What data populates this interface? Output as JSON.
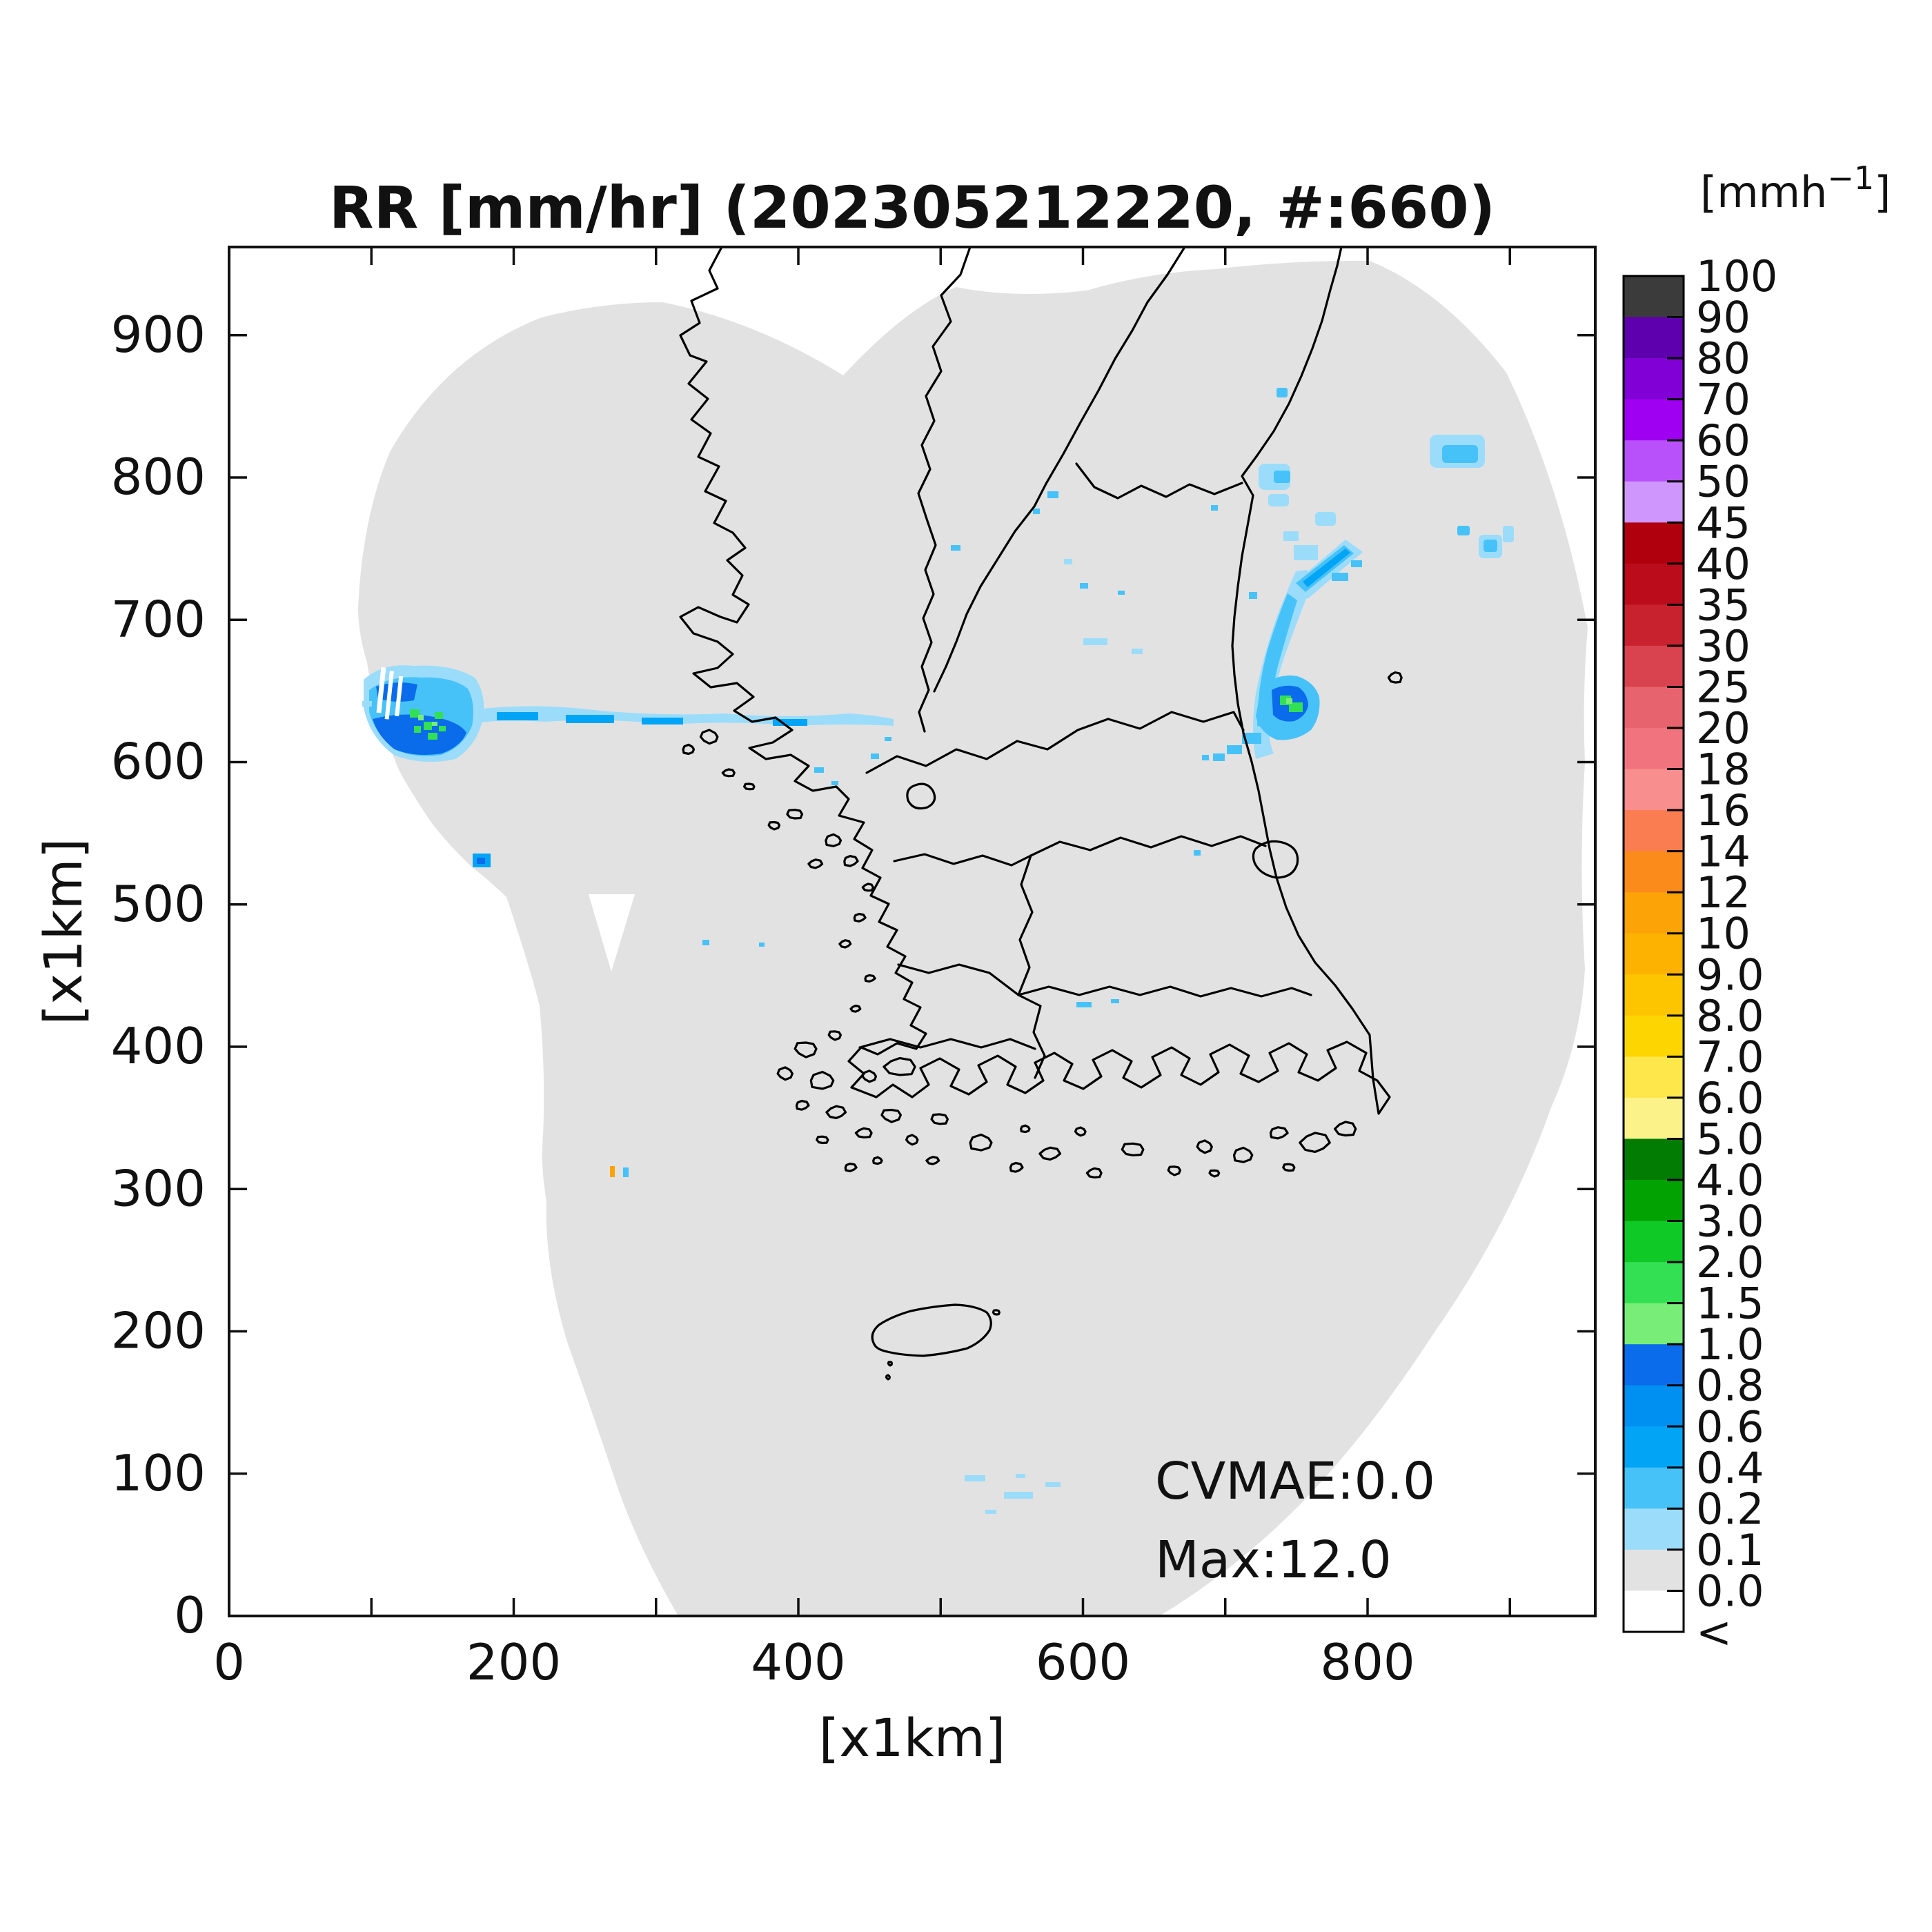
{
  "title": "RR [mm/hr] (202305212220, #:660)",
  "axes": {
    "x": {
      "label": "[x1km]",
      "range_km": [
        0,
        960
      ],
      "labeled_ticks": [
        0,
        200,
        400,
        600,
        800
      ],
      "minor_ticks": [
        0,
        100,
        200,
        300,
        400,
        500,
        600,
        700,
        800,
        900
      ],
      "tick_labels": [
        "0",
        "200",
        "400",
        "600",
        "800"
      ]
    },
    "y": {
      "label": "[x1km]",
      "range_km": [
        0,
        960
      ],
      "labeled_ticks": [
        0,
        100,
        200,
        300,
        400,
        500,
        600,
        700,
        800,
        900
      ],
      "minor_ticks": [
        0,
        100,
        200,
        300,
        400,
        500,
        600,
        700,
        800,
        900
      ],
      "tick_labels": [
        "0",
        "100",
        "200",
        "300",
        "400",
        "500",
        "600",
        "700",
        "800",
        "900"
      ]
    }
  },
  "annotations": {
    "cvmae": "CVMAE:0.0",
    "max": "Max:12.0"
  },
  "colorbar": {
    "unit_prefix": "[mmh",
    "unit_exp": "−1",
    "unit_suffix": "]",
    "labels_top_to_bottom": [
      "100",
      "90",
      "80",
      "70",
      "60",
      "50",
      "45",
      "40",
      "35",
      "30",
      "25",
      "20",
      "18",
      "16",
      "14",
      "12",
      "10",
      "9.0",
      "8.0",
      "7.0",
      "6.0",
      "5.0",
      "4.0",
      "3.0",
      "2.0",
      "1.5",
      "1.0",
      "0.8",
      "0.6",
      "0.4",
      "0.2",
      "0.1",
      "0.0",
      "<"
    ],
    "segment_colors_top_to_bottom": [
      "#3b3b3b",
      "#5e00ae",
      "#8000d6",
      "#9f00f2",
      "#b951fa",
      "#cf97fd",
      "#b0000e",
      "#bb0c1c",
      "#c8222e",
      "#d8434f",
      "#e7636d",
      "#f1737e",
      "#f88e8e",
      "#fa7d52",
      "#fb8b1b",
      "#fca307",
      "#fdb201",
      "#fdc400",
      "#fdd500",
      "#fde74b",
      "#fcf28a",
      "#027c02",
      "#03a203",
      "#0ec926",
      "#33df53",
      "#78ee78",
      "#0a6cea",
      "#0090f2",
      "#02a4f6",
      "#47c2f8",
      "#9bdcfb",
      "#e2e2e2",
      "#ffffff"
    ]
  },
  "map_colors": {
    "coverage_gray": "#e2e2e2",
    "coastline": "#000000",
    "precip_light": "#9bdcfb",
    "precip_light2": "#47c2f8",
    "precip_mid": "#02a4f6",
    "precip_dark": "#0a6cea",
    "precip_green": "#33df53",
    "precip_green_light": "#78ee78",
    "precip_orange": "#fca307"
  },
  "chart_data": {
    "type": "heatmap",
    "title": "RR [mm/hr] (202305212220, #:660)",
    "xlabel": "[x1km]",
    "ylabel": "[x1km]",
    "xlim": [
      0,
      960
    ],
    "ylim": [
      0,
      960
    ],
    "colorbar_unit": "mmh^-1",
    "scale_levels": [
      "<",
      0.0,
      0.1,
      0.2,
      0.4,
      0.6,
      0.8,
      1.0,
      1.5,
      2.0,
      3.0,
      4.0,
      5.0,
      6.0,
      7.0,
      8.0,
      9.0,
      10,
      12,
      14,
      16,
      18,
      20,
      25,
      30,
      35,
      40,
      45,
      50,
      60,
      70,
      80,
      90,
      100
    ],
    "stats": {
      "CVMAE": 0.0,
      "Max": 12.0,
      "sample_count": 660
    },
    "description": "KMA radar composite rain-rate map over the Korean peninsula; gray = radar coverage (0.0-0.1 mm/hr), white = outside coverage",
    "precip_regions_km": [
      {
        "name": "yellow-sea-band-west",
        "center": [
          130,
          625
        ],
        "extent": [
          80,
          60
        ],
        "peak_mmhr": 2.0,
        "note": "comet-shaped band with green core, thin streak extending east to x=465"
      },
      {
        "name": "east-coast-crescent",
        "center": [
          740,
          645
        ],
        "extent": [
          45,
          130
        ],
        "peak_mmhr": 2.0,
        "note": "crescent band with green core near coast"
      },
      {
        "name": "east-sea-scattered",
        "center": [
          855,
          800
        ],
        "extent": [
          220,
          140
        ],
        "peak_mmhr": 0.6,
        "note": "scattered light blue patches"
      },
      {
        "name": "isolated-speck",
        "center": [
          265,
          315
        ],
        "extent": [
          5,
          8
        ],
        "peak_mmhr": 10.0,
        "note": "tiny orange+blue speck"
      },
      {
        "name": "south-scattered",
        "center": [
          550,
          95
        ],
        "extent": [
          40,
          15
        ],
        "peak_mmhr": 0.3
      }
    ]
  }
}
